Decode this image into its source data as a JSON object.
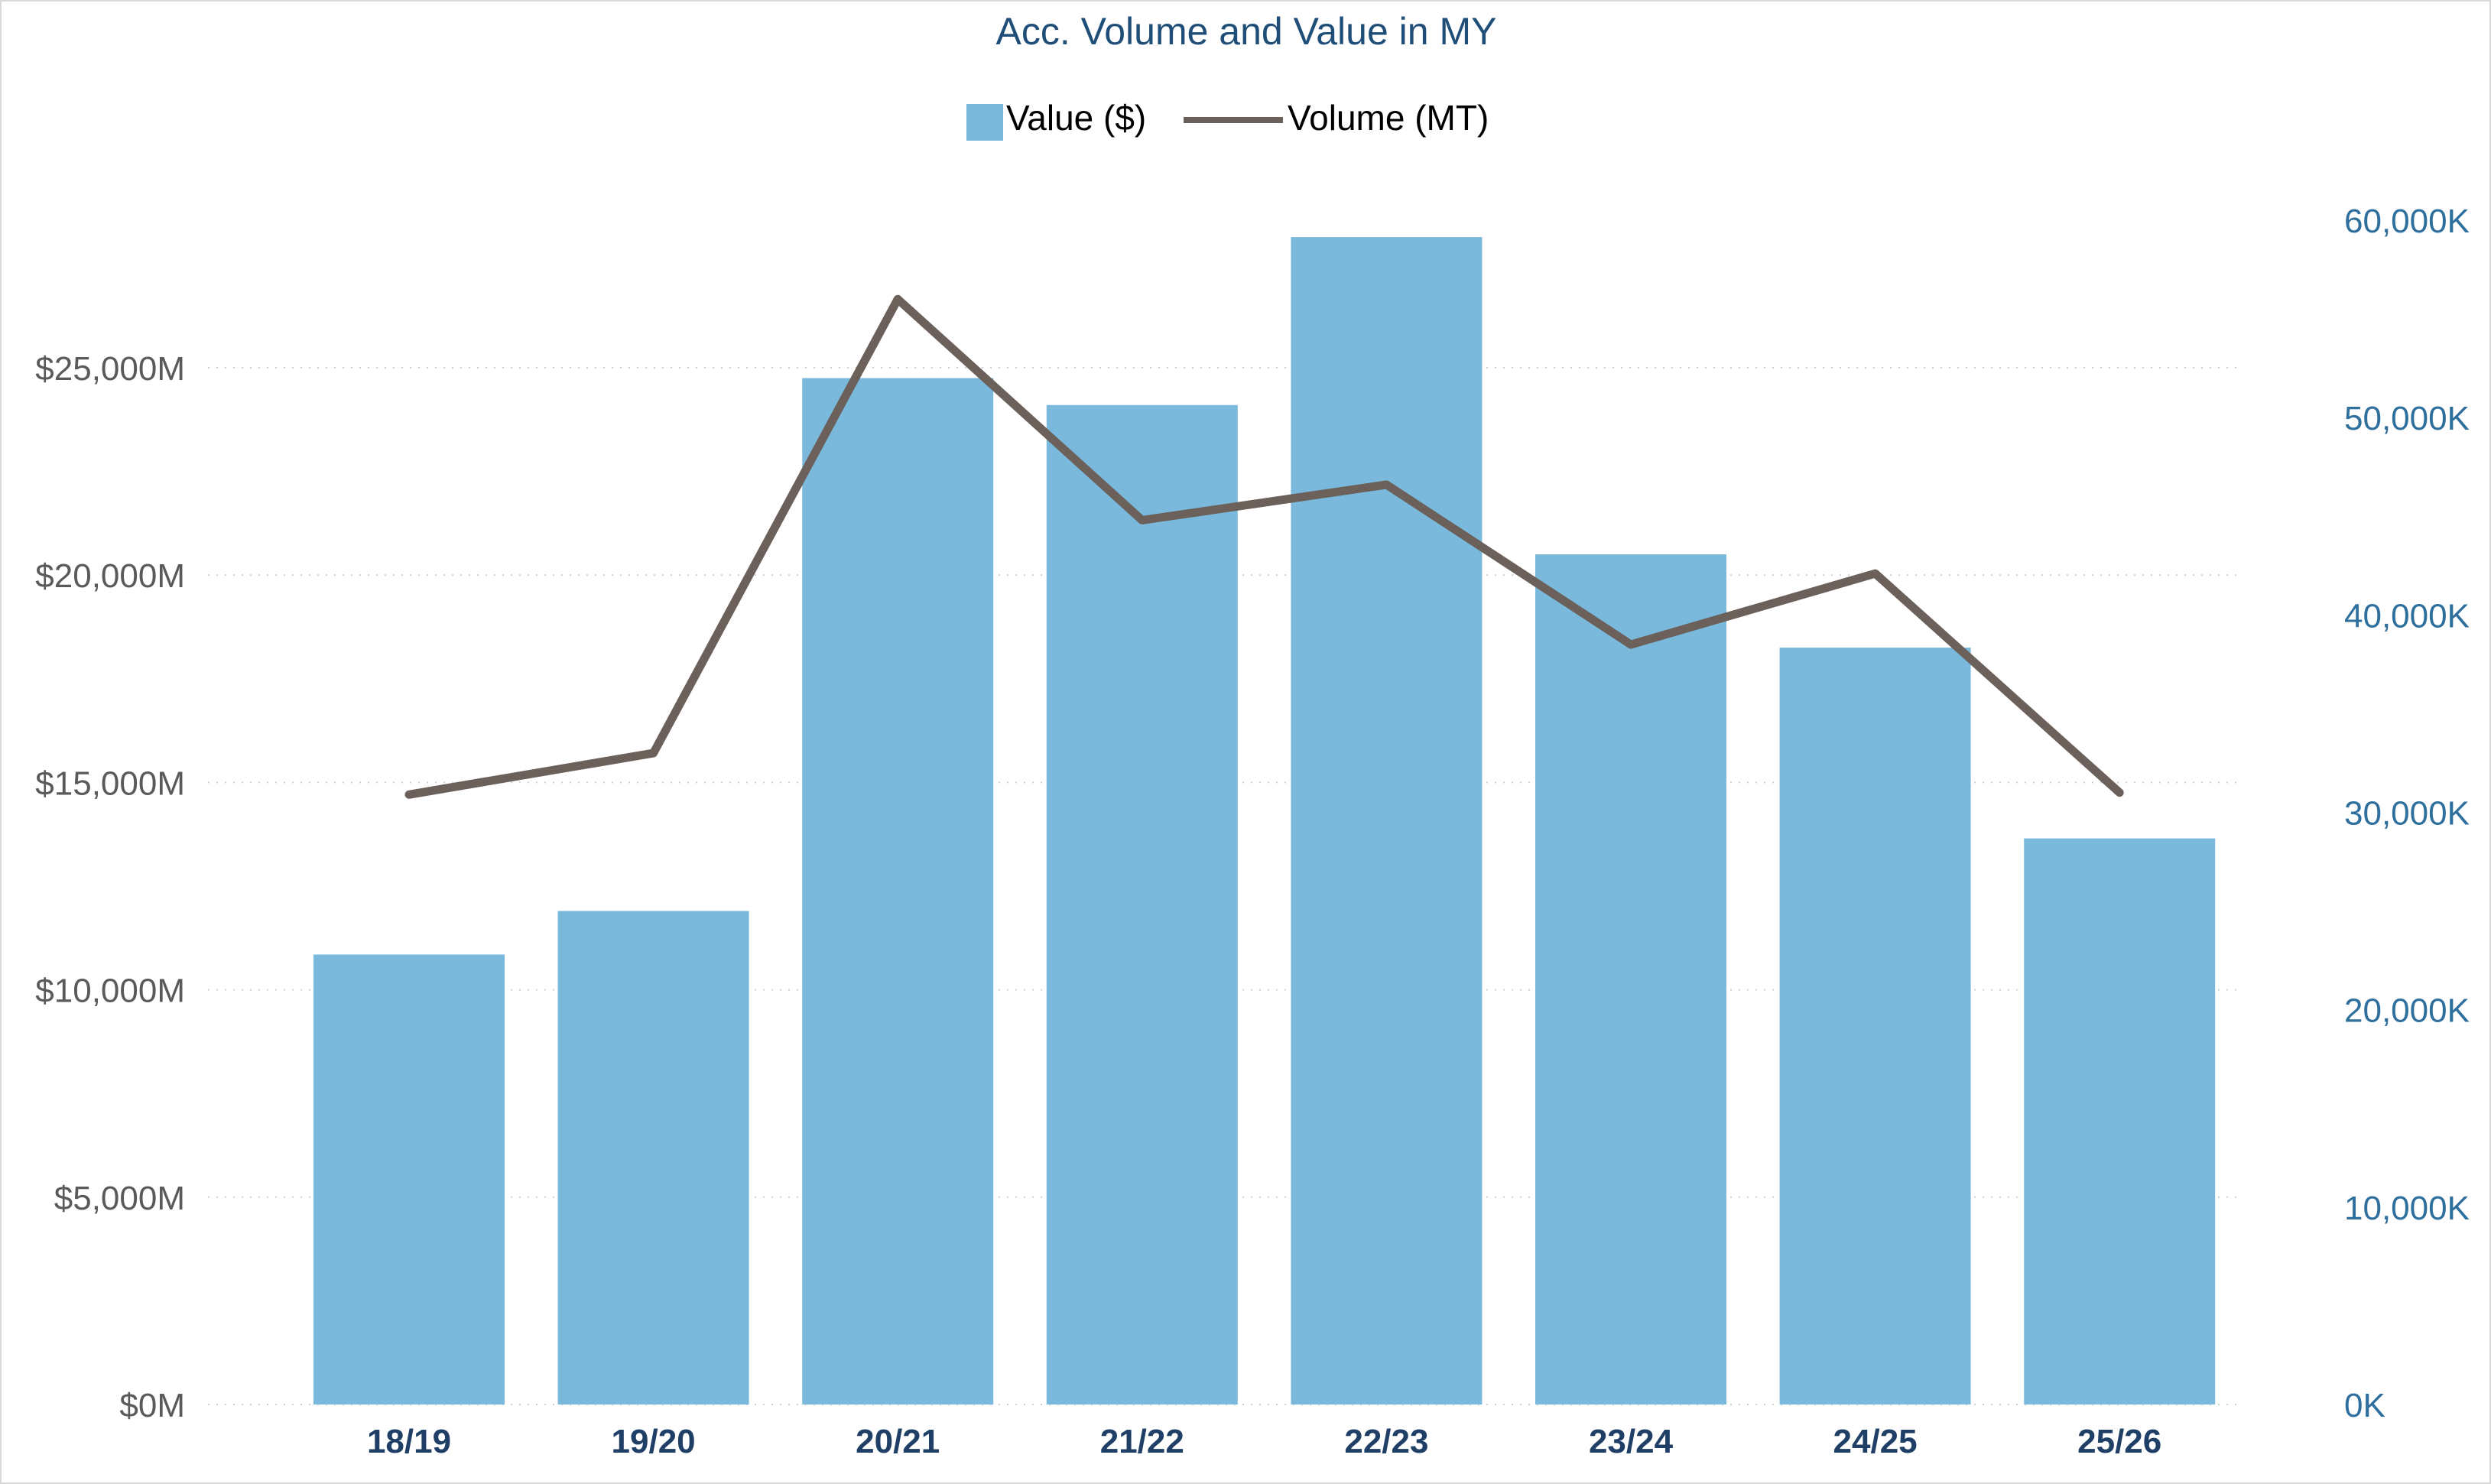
{
  "chart_data": {
    "type": "bar",
    "title": "Acc. Volume and Value in MY",
    "categories": [
      "18/19",
      "19/20",
      "20/21",
      "21/22",
      "22/23",
      "23/24",
      "24/25",
      "25/26"
    ],
    "series": [
      {
        "name": "Value ($)",
        "type": "bar",
        "axis": "left",
        "values": [
          10850,
          11900,
          24750,
          24100,
          28150,
          20500,
          18250,
          13650
        ],
        "color": "#7ab9db"
      },
      {
        "name": "Volume (MT)",
        "type": "line",
        "axis": "right",
        "values": [
          30900,
          33000,
          56000,
          44800,
          46600,
          38500,
          42100,
          31000
        ],
        "color": "#6b605a"
      }
    ],
    "y_left": {
      "ticks": [
        "$0M",
        "$5,000M",
        "$10,000M",
        "$15,000M",
        "$20,000M",
        "$25,000M"
      ],
      "tick_values": [
        0,
        5000,
        10000,
        15000,
        20000,
        25000
      ],
      "ylim": [
        0,
        29000
      ],
      "color": "#5a5a5a"
    },
    "y_right": {
      "ticks": [
        "0K",
        "10,000K",
        "20,000K",
        "30,000K",
        "40,000K",
        "50,000K",
        "60,000K"
      ],
      "tick_values": [
        0,
        10000,
        20000,
        30000,
        40000,
        50000,
        60000
      ],
      "ylim": [
        0,
        60000
      ],
      "color": "#2e6f9e"
    },
    "legend": {
      "position": "top-center",
      "items": [
        "Value ($)",
        "Volume (MT)"
      ]
    },
    "grid": true,
    "title_color": "#1f4e79",
    "category_color": "#1f3f66"
  }
}
